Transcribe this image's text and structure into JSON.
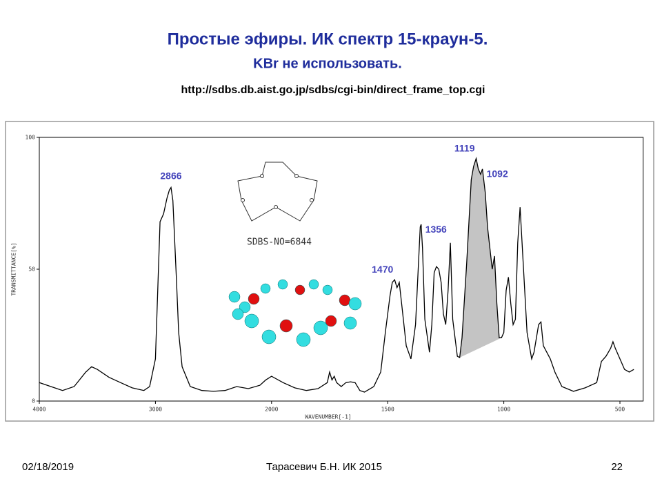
{
  "slide": {
    "title": "Простые эфиры. ИК спектр 15-краун-5.",
    "subtitle": "KBr не использовать.",
    "url": "http://sdbs.db.aist.go.jp/sdbs/cgi-bin/direct_frame_top.cgi"
  },
  "chart_data": {
    "type": "line",
    "ylabel": "TRANSMITTANCE[%]",
    "xlabel": "WAVENUMBER[-1]",
    "annotation": "SDBS-NO=6844",
    "color": "#000000",
    "x": [
      4000,
      3900,
      3800,
      3700,
      3600,
      3550,
      3500,
      3400,
      3300,
      3200,
      3100,
      3050,
      3000,
      2960,
      2930,
      2900,
      2880,
      2866,
      2850,
      2820,
      2800,
      2770,
      2700,
      2600,
      2500,
      2400,
      2300,
      2200,
      2100,
      2050,
      2000,
      1950,
      1900,
      1850,
      1800,
      1760,
      1750,
      1740,
      1730,
      1720,
      1700,
      1680,
      1660,
      1640,
      1620,
      1600,
      1560,
      1530,
      1510,
      1490,
      1480,
      1470,
      1460,
      1450,
      1440,
      1420,
      1400,
      1380,
      1360,
      1356,
      1350,
      1340,
      1320,
      1310,
      1300,
      1290,
      1280,
      1270,
      1260,
      1250,
      1240,
      1230,
      1220,
      1200,
      1190,
      1180,
      1160,
      1140,
      1130,
      1119,
      1110,
      1100,
      1092,
      1080,
      1070,
      1060,
      1050,
      1040,
      1030,
      1020,
      1010,
      1000,
      990,
      980,
      970,
      960,
      950,
      940,
      930,
      920,
      900,
      880,
      870,
      850,
      840,
      830,
      800,
      780,
      750,
      700,
      650,
      600,
      580,
      560,
      540,
      530,
      520,
      500,
      480,
      460,
      440
    ],
    "values": [
      7,
      5.5,
      4,
      5.5,
      11,
      13,
      12,
      9,
      7,
      5,
      4,
      5.5,
      16,
      68,
      71,
      77,
      80,
      81,
      76,
      47,
      26,
      13,
      5.5,
      4,
      3.7,
      4,
      5.5,
      4.7,
      6,
      8,
      9.4,
      7,
      5,
      4,
      4.7,
      7,
      11,
      8,
      9.4,
      7,
      5.5,
      7,
      7.3,
      7,
      4,
      3.4,
      5.5,
      11,
      26,
      40,
      45,
      46,
      43,
      45,
      37,
      21,
      16,
      29,
      66,
      67,
      58,
      31,
      18.5,
      29,
      48.7,
      51,
      50,
      45,
      33,
      29,
      42,
      60,
      31,
      17,
      16.5,
      24,
      52,
      84,
      89,
      92,
      88,
      86,
      88,
      79,
      66,
      58,
      50,
      55,
      37,
      24,
      24,
      26,
      42,
      47,
      37,
      29,
      31,
      60,
      73.5,
      58,
      26,
      16,
      18.5,
      29,
      30,
      21,
      16,
      11,
      5.5,
      3.7,
      5,
      7,
      15,
      17,
      20,
      22.5,
      20,
      16,
      12,
      11,
      12
    ],
    "peak_labels": [
      2866,
      1470,
      1356,
      1119,
      1092
    ],
    "peak_label_color": "#4444bb",
    "highlight": {
      "from": 1190,
      "to": 1010,
      "color": "#c4c4c4"
    },
    "xlim": [
      4000,
      400
    ],
    "xticks": [
      4000,
      3000,
      2000,
      1500,
      1000,
      500
    ],
    "ylim": [
      0,
      100
    ],
    "yticks": [
      0,
      50,
      100
    ]
  },
  "footer": {
    "date": "02/18/2019",
    "author": "Тарасевич Б.Н.  ИК 2015",
    "page": "22"
  }
}
